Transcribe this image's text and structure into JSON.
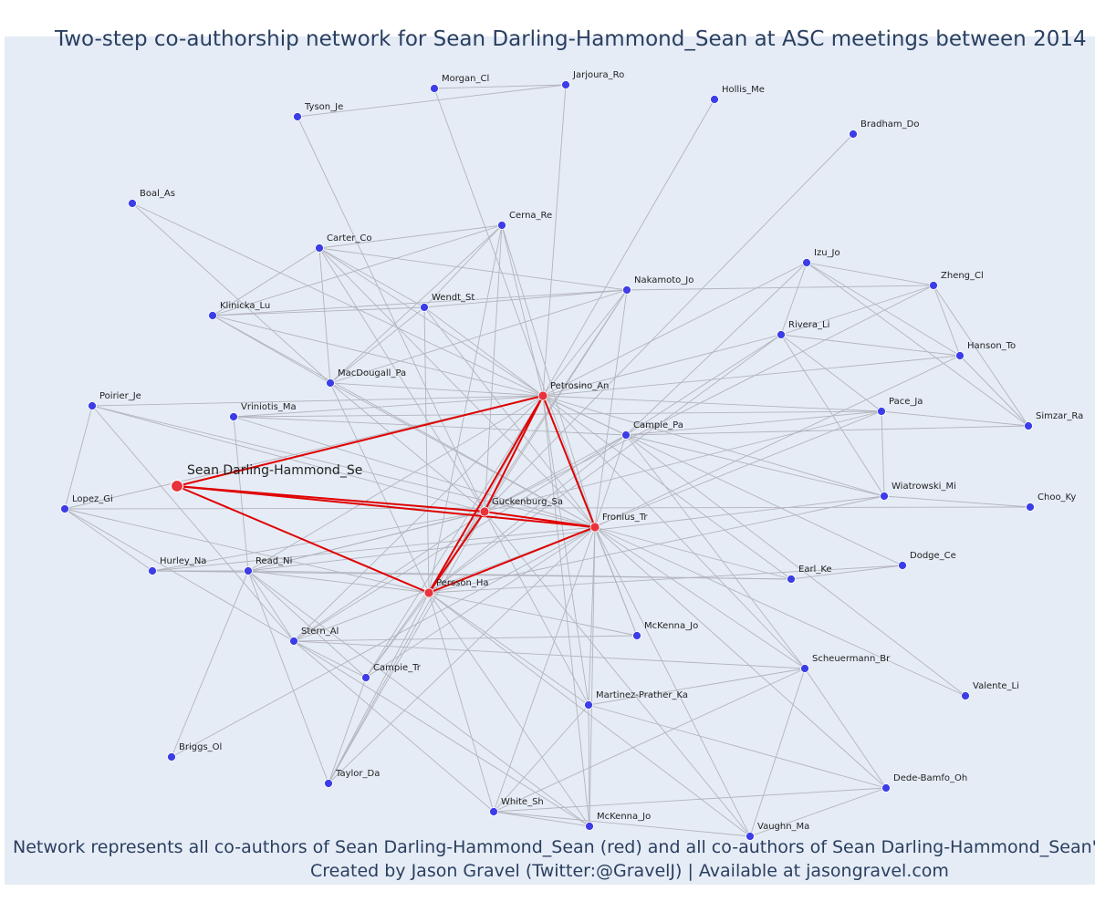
{
  "title": "Two-step co-authorship network for Sean Darling-Hammond_Sean at ASC meetings between 2014",
  "footer": {
    "line1": "Network represents all co-authors of Sean Darling-Hammond_Sean (red) and all co-authors of Sean Darling-Hammond_Sean's co",
    "line2": "Created by Jason Gravel (Twitter:@GravelJ) | Available at jasongravel.com"
  },
  "colors": {
    "background": "#e5ecf6",
    "node": "#3d3de8",
    "focal_node": "#e8323c",
    "edge": "#b4b4bc",
    "focal_edge": "#e00000",
    "text": "#2a3f5f"
  },
  "nodes": [
    {
      "id": "Sean Darling-Hammond_Se",
      "focal": true,
      "big": true
    },
    {
      "id": "Petrosino_An",
      "focal": true
    },
    {
      "id": "Guckenburg_Sa",
      "focal": true
    },
    {
      "id": "Fronius_Tr",
      "focal": true
    },
    {
      "id": "Persson_Ha",
      "focal": true
    },
    {
      "id": "Morgan_Cl"
    },
    {
      "id": "Jarjoura_Ro"
    },
    {
      "id": "Tyson_Je"
    },
    {
      "id": "Hollis_Me"
    },
    {
      "id": "Bradham_Do"
    },
    {
      "id": "Boal_As"
    },
    {
      "id": "Cerna_Re"
    },
    {
      "id": "Carter_Co"
    },
    {
      "id": "Izu_Jo"
    },
    {
      "id": "Zheng_Cl"
    },
    {
      "id": "Nakamoto_Jo"
    },
    {
      "id": "Klinicka_Lu"
    },
    {
      "id": "Wendt_St"
    },
    {
      "id": "Rivera_Li"
    },
    {
      "id": "Hanson_To"
    },
    {
      "id": "MacDougall_Pa"
    },
    {
      "id": "Poirier_Je"
    },
    {
      "id": "Vriniotis_Ma"
    },
    {
      "id": "Pace_Ja"
    },
    {
      "id": "Simzar_Ra"
    },
    {
      "id": "Campie_Pa"
    },
    {
      "id": "Wiatrowski_Mi"
    },
    {
      "id": "Choo_Ky"
    },
    {
      "id": "Lopez_Gi"
    },
    {
      "id": "Hurley_Na"
    },
    {
      "id": "Read_Ni"
    },
    {
      "id": "Dodge_Ce"
    },
    {
      "id": "Earl_Ke"
    },
    {
      "id": "McKenna_Jo"
    },
    {
      "id": "Stern_Al"
    },
    {
      "id": "Campie_Tr"
    },
    {
      "id": "Scheuermann_Br"
    },
    {
      "id": "Valente_Li"
    },
    {
      "id": "Martinez-Prather_Ka"
    },
    {
      "id": "Briggs_Ol"
    },
    {
      "id": "Taylor_Da"
    },
    {
      "id": "Dede-Bamfo_Oh"
    },
    {
      "id": "White_Sh"
    },
    {
      "id": "McKenna_Jo (2)",
      "label": "McKenna_Jo"
    },
    {
      "id": "Vaughn_Ma"
    }
  ],
  "focal_edges": [
    [
      "Sean Darling-Hammond_Se",
      "Petrosino_An"
    ],
    [
      "Sean Darling-Hammond_Se",
      "Guckenburg_Sa"
    ],
    [
      "Sean Darling-Hammond_Se",
      "Fronius_Tr"
    ],
    [
      "Sean Darling-Hammond_Se",
      "Persson_Ha"
    ],
    [
      "Petrosino_An",
      "Guckenburg_Sa"
    ],
    [
      "Petrosino_An",
      "Fronius_Tr"
    ],
    [
      "Petrosino_An",
      "Persson_Ha"
    ],
    [
      "Guckenburg_Sa",
      "Fronius_Tr"
    ],
    [
      "Guckenburg_Sa",
      "Persson_Ha"
    ],
    [
      "Fronius_Tr",
      "Persson_Ha"
    ]
  ],
  "edges": [
    [
      "Morgan_Cl",
      "Jarjoura_Ro"
    ],
    [
      "Morgan_Cl",
      "Fronius_Tr"
    ],
    [
      "Jarjoura_Ro",
      "Petrosino_An"
    ],
    [
      "Tyson_Je",
      "Jarjoura_Ro"
    ],
    [
      "Tyson_Je",
      "Guckenburg_Sa"
    ],
    [
      "Hollis_Me",
      "Petrosino_An"
    ],
    [
      "Bradham_Do",
      "Guckenburg_Sa"
    ],
    [
      "Boal_As",
      "Campie_Pa"
    ],
    [
      "Boal_As",
      "MacDougall_Pa"
    ],
    [
      "Cerna_Re",
      "Carter_Co"
    ],
    [
      "Cerna_Re",
      "Klinicka_Lu"
    ],
    [
      "Cerna_Re",
      "Wendt_St"
    ],
    [
      "Cerna_Re",
      "MacDougall_Pa"
    ],
    [
      "Cerna_Re",
      "Petrosino_An"
    ],
    [
      "Cerna_Re",
      "Fronius_Tr"
    ],
    [
      "Cerna_Re",
      "Guckenburg_Sa"
    ],
    [
      "Cerna_Re",
      "Persson_Ha"
    ],
    [
      "Carter_Co",
      "Klinicka_Lu"
    ],
    [
      "Carter_Co",
      "Wendt_St"
    ],
    [
      "Carter_Co",
      "MacDougall_Pa"
    ],
    [
      "Carter_Co",
      "Nakamoto_Jo"
    ],
    [
      "Carter_Co",
      "Petrosino_An"
    ],
    [
      "Carter_Co",
      "Fronius_Tr"
    ],
    [
      "Carter_Co",
      "Guckenburg_Sa"
    ],
    [
      "Klinicka_Lu",
      "Wendt_St"
    ],
    [
      "Klinicka_Lu",
      "MacDougall_Pa"
    ],
    [
      "Klinicka_Lu",
      "Nakamoto_Jo"
    ],
    [
      "Klinicka_Lu",
      "Petrosino_An"
    ],
    [
      "Klinicka_Lu",
      "Fronius_Tr"
    ],
    [
      "Wendt_St",
      "MacDougall_Pa"
    ],
    [
      "Wendt_St",
      "Nakamoto_Jo"
    ],
    [
      "Wendt_St",
      "Petrosino_An"
    ],
    [
      "Wendt_St",
      "Fronius_Tr"
    ],
    [
      "Wendt_St",
      "Persson_Ha"
    ],
    [
      "Nakamoto_Jo",
      "Petrosino_An"
    ],
    [
      "Nakamoto_Jo",
      "Fronius_Tr"
    ],
    [
      "Nakamoto_Jo",
      "MacDougall_Pa"
    ],
    [
      "Nakamoto_Jo",
      "Guckenburg_Sa"
    ],
    [
      "Nakamoto_Jo",
      "Persson_Ha"
    ],
    [
      "MacDougall_Pa",
      "Petrosino_An"
    ],
    [
      "MacDougall_Pa",
      "Fronius_Tr"
    ],
    [
      "MacDougall_Pa",
      "Guckenburg_Sa"
    ],
    [
      "MacDougall_Pa",
      "Persson_Ha"
    ],
    [
      "Izu_Jo",
      "Zheng_Cl"
    ],
    [
      "Izu_Jo",
      "Rivera_Li"
    ],
    [
      "Izu_Jo",
      "Hanson_To"
    ],
    [
      "Izu_Jo",
      "Simzar_Ra"
    ],
    [
      "Izu_Jo",
      "Petrosino_An"
    ],
    [
      "Izu_Jo",
      "Campie_Pa"
    ],
    [
      "Zheng_Cl",
      "Hanson_To"
    ],
    [
      "Zheng_Cl",
      "Simzar_Ra"
    ],
    [
      "Zheng_Cl",
      "Rivera_Li"
    ],
    [
      "Zheng_Cl",
      "Nakamoto_Jo"
    ],
    [
      "Zheng_Cl",
      "Guckenburg_Sa"
    ],
    [
      "Rivera_Li",
      "Hanson_To"
    ],
    [
      "Rivera_Li",
      "Pace_Ja"
    ],
    [
      "Rivera_Li",
      "Wiatrowski_Mi"
    ],
    [
      "Rivera_Li",
      "Petrosino_An"
    ],
    [
      "Rivera_Li",
      "Campie_Pa"
    ],
    [
      "Rivera_Li",
      "Persson_Ha"
    ],
    [
      "Hanson_To",
      "Simzar_Ra"
    ],
    [
      "Hanson_To",
      "Petrosino_An"
    ],
    [
      "Hanson_To",
      "Fronius_Tr"
    ],
    [
      "Poirier_Je",
      "Lopez_Gi"
    ],
    [
      "Poirier_Je",
      "Petrosino_An"
    ],
    [
      "Poirier_Je",
      "Fronius_Tr"
    ],
    [
      "Poirier_Je",
      "Stern_Al"
    ],
    [
      "Poirier_Je",
      "Guckenburg_Sa"
    ],
    [
      "Vriniotis_Ma",
      "Pace_Ja"
    ],
    [
      "Vriniotis_Ma",
      "Campie_Pa"
    ],
    [
      "Vriniotis_Ma",
      "Fronius_Tr"
    ],
    [
      "Vriniotis_Ma",
      "Read_Ni"
    ],
    [
      "Vriniotis_Ma",
      "Petrosino_An"
    ],
    [
      "Pace_Ja",
      "Campie_Pa"
    ],
    [
      "Pace_Ja",
      "Wiatrowski_Mi"
    ],
    [
      "Pace_Ja",
      "Simzar_Ra"
    ],
    [
      "Pace_Ja",
      "Petrosino_An"
    ],
    [
      "Pace_Ja",
      "Persson_Ha"
    ],
    [
      "Pace_Ja",
      "Read_Ni"
    ],
    [
      "Campie_Pa",
      "Wiatrowski_Mi"
    ],
    [
      "Campie_Pa",
      "Petrosino_An"
    ],
    [
      "Campie_Pa",
      "Fronius_Tr"
    ],
    [
      "Campie_Pa",
      "Guckenburg_Sa"
    ],
    [
      "Campie_Pa",
      "Persson_Ha"
    ],
    [
      "Campie_Pa",
      "Simzar_Ra"
    ],
    [
      "Campie_Pa",
      "Stern_Al"
    ],
    [
      "Campie_Pa",
      "Scheuermann_Br"
    ],
    [
      "Wiatrowski_Mi",
      "Choo_Ky"
    ],
    [
      "Wiatrowski_Mi",
      "Petrosino_An"
    ],
    [
      "Wiatrowski_Mi",
      "Persson_Ha"
    ],
    [
      "Wiatrowski_Mi",
      "Read_Ni"
    ],
    [
      "Choo_Ky",
      "Lopez_Gi"
    ],
    [
      "Lopez_Gi",
      "Hurley_Na"
    ],
    [
      "Lopez_Gi",
      "Persson_Ha"
    ],
    [
      "Lopez_Gi",
      "Petrosino_An"
    ],
    [
      "Lopez_Gi",
      "Stern_Al"
    ],
    [
      "Hurley_Na",
      "Read_Ni"
    ],
    [
      "Hurley_Na",
      "Guckenburg_Sa"
    ],
    [
      "Hurley_Na",
      "Earl_Ke"
    ],
    [
      "Hurley_Na",
      "Fronius_Tr"
    ],
    [
      "Read_Ni",
      "Earl_Ke"
    ],
    [
      "Read_Ni",
      "Persson_Ha"
    ],
    [
      "Read_Ni",
      "Guckenburg_Sa"
    ],
    [
      "Read_Ni",
      "Stern_Al"
    ],
    [
      "Read_Ni",
      "Campie_Tr"
    ],
    [
      "Read_Ni",
      "Taylor_Da"
    ],
    [
      "Read_Ni",
      "Briggs_Ol"
    ],
    [
      "Read_Ni",
      "Petrosino_An"
    ],
    [
      "Dodge_Ce",
      "Earl_Ke"
    ],
    [
      "Dodge_Ce",
      "Persson_Ha"
    ],
    [
      "Dodge_Ce",
      "Petrosino_An"
    ],
    [
      "Earl_Ke",
      "Petrosino_An"
    ],
    [
      "Earl_Ke",
      "Fronius_Tr"
    ],
    [
      "McKenna_Jo",
      "Stern_Al"
    ],
    [
      "McKenna_Jo",
      "Fronius_Tr"
    ],
    [
      "McKenna_Jo",
      "Petrosino_An"
    ],
    [
      "McKenna_Jo",
      "Persson_Ha"
    ],
    [
      "Stern_Al",
      "Petrosino_An"
    ],
    [
      "Stern_Al",
      "Fronius_Tr"
    ],
    [
      "Stern_Al",
      "Guckenburg_Sa"
    ],
    [
      "Stern_Al",
      "Campie_Tr"
    ],
    [
      "Stern_Al",
      "McKenna_Jo (2)"
    ],
    [
      "Stern_Al",
      "Scheuermann_Br"
    ],
    [
      "Campie_Tr",
      "Persson_Ha"
    ],
    [
      "Campie_Tr",
      "Fronius_Tr"
    ],
    [
      "Campie_Tr",
      "Petrosino_An"
    ],
    [
      "Campie_Tr",
      "Taylor_Da"
    ],
    [
      "Campie_Tr",
      "Guckenburg_Sa"
    ],
    [
      "Scheuermann_Br",
      "Fronius_Tr"
    ],
    [
      "Scheuermann_Br",
      "Martinez-Prather_Ka"
    ],
    [
      "Scheuermann_Br",
      "Vaughn_Ma"
    ],
    [
      "Scheuermann_Br",
      "Dede-Bamfo_Oh"
    ],
    [
      "Scheuermann_Br",
      "Petrosino_An"
    ],
    [
      "Valente_Li",
      "Fronius_Tr"
    ],
    [
      "Valente_Li",
      "Campie_Pa"
    ],
    [
      "Martinez-Prather_Ka",
      "Fronius_Tr"
    ],
    [
      "Martinez-Prather_Ka",
      "Persson_Ha"
    ],
    [
      "Martinez-Prather_Ka",
      "White_Sh"
    ],
    [
      "Martinez-Prather_Ka",
      "Dede-Bamfo_Oh"
    ],
    [
      "Martinez-Prather_Ka",
      "McKenna_Jo (2)"
    ],
    [
      "Martinez-Prather_Ka",
      "Petrosino_An"
    ],
    [
      "Martinez-Prather_Ka",
      "Guckenburg_Sa"
    ],
    [
      "Briggs_Ol",
      "Fronius_Tr"
    ],
    [
      "Taylor_Da",
      "Persson_Ha"
    ],
    [
      "Taylor_Da",
      "Guckenburg_Sa"
    ],
    [
      "Taylor_Da",
      "Fronius_Tr"
    ],
    [
      "Taylor_Da",
      "Petrosino_An"
    ],
    [
      "Dede-Bamfo_Oh",
      "Fronius_Tr"
    ],
    [
      "Dede-Bamfo_Oh",
      "White_Sh"
    ],
    [
      "Dede-Bamfo_Oh",
      "Vaughn_Ma"
    ],
    [
      "White_Sh",
      "Fronius_Tr"
    ],
    [
      "White_Sh",
      "Persson_Ha"
    ],
    [
      "White_Sh",
      "McKenna_Jo (2)"
    ],
    [
      "White_Sh",
      "Vaughn_Ma"
    ],
    [
      "White_Sh",
      "Stern_Al"
    ],
    [
      "White_Sh",
      "Scheuermann_Br"
    ],
    [
      "McKenna_Jo (2)",
      "Persson_Ha"
    ],
    [
      "McKenna_Jo (2)",
      "Fronius_Tr"
    ],
    [
      "McKenna_Jo (2)",
      "Read_Ni"
    ],
    [
      "McKenna_Jo (2)",
      "Petrosino_An"
    ],
    [
      "Vaughn_Ma",
      "Fronius_Tr"
    ],
    [
      "Vaughn_Ma",
      "Persson_Ha"
    ],
    [
      "Vaughn_Ma",
      "Guckenburg_Sa"
    ]
  ]
}
